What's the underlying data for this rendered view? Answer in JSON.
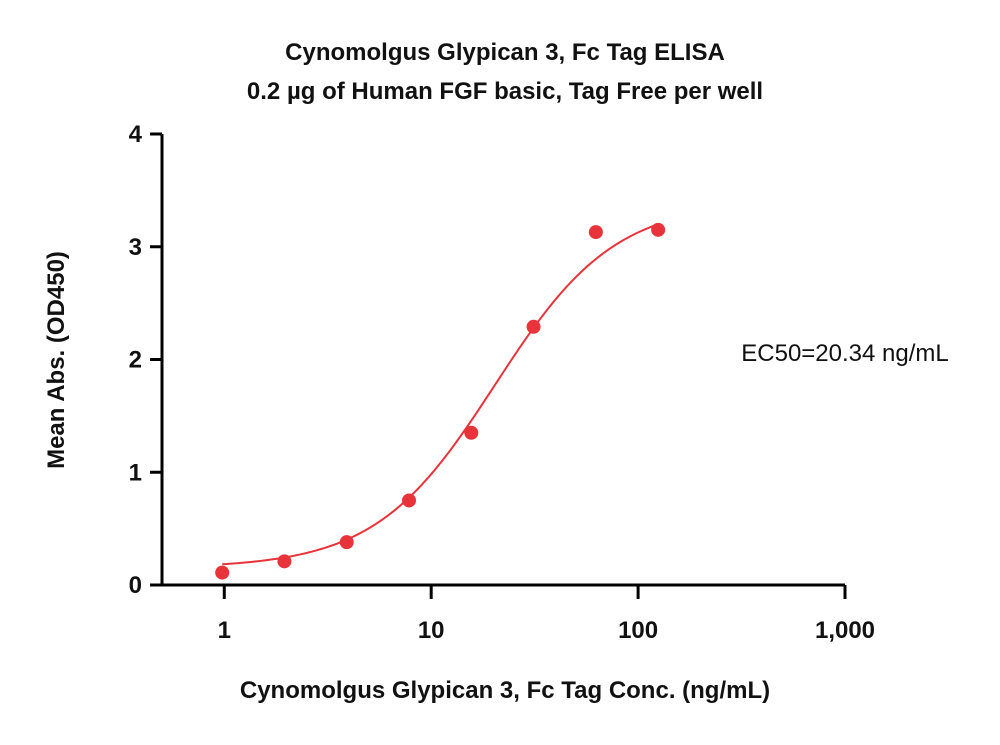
{
  "chart_data": {
    "type": "scatter",
    "title": "Cynomolgus Glypican 3, Fc Tag ELISA",
    "subtitle": "0.2 µg of Human FGF basic, Tag Free per well",
    "xlabel": "Cynomolgus Glypican 3, Fc Tag Conc. (ng/mL)",
    "ylabel": "Mean Abs. (OD450)",
    "x_scale": "log",
    "xlim": [
      0.5,
      1000
    ],
    "ylim": [
      0,
      4
    ],
    "x_ticks": [
      1,
      10,
      100,
      1000
    ],
    "x_tick_labels": [
      "1",
      "10",
      "100",
      "1,000"
    ],
    "y_ticks": [
      0,
      1,
      2,
      3,
      4
    ],
    "y_tick_labels": [
      "0",
      "1",
      "2",
      "3",
      "4"
    ],
    "grid": false,
    "legend": "none",
    "annotation": "EC50=20.34 ng/mL",
    "series": [
      {
        "x": [
          0.977,
          1.953,
          3.906,
          7.813,
          15.625,
          31.25,
          62.5,
          125
        ],
        "y": [
          0.11,
          0.21,
          0.38,
          0.75,
          1.35,
          2.29,
          3.13,
          3.15
        ],
        "color": "#e8333a",
        "fit": {
          "model": "4PL",
          "bottom": 0.15,
          "top": 3.4,
          "ec50": 20.34,
          "hill": 1.5,
          "x_range": [
            0.977,
            125
          ]
        }
      }
    ]
  }
}
